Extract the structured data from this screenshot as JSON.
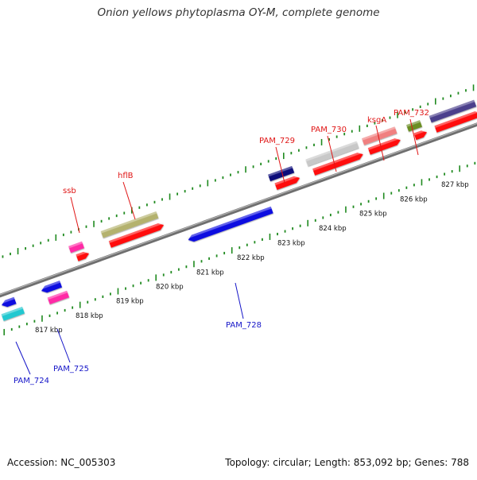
{
  "title": "Onion yellows phytoplasma OY-M, complete genome",
  "accession": "Accession: NC_005303",
  "topology": "Topology: circular; Length: 853,092 bp; Genes: 788",
  "colors": {
    "backbone": "#8a8a8a",
    "ticks": "#1f8a1f",
    "label_forward": "#e01515",
    "label_reverse": "#1515c8",
    "cds": "#ff1010"
  },
  "kbp_labels": [
    "817 kbp",
    "818 kbp",
    "819 kbp",
    "820 kbp",
    "821 kbp",
    "822 kbp",
    "823 kbp",
    "824 kbp",
    "825 kbp",
    "826 kbp",
    "827 kbp"
  ],
  "gene_labels": [
    {
      "text": "ssb",
      "strand": "forward"
    },
    {
      "text": "hflB",
      "strand": "forward"
    },
    {
      "text": "PAM_729",
      "strand": "forward"
    },
    {
      "text": "PAM_730",
      "strand": "forward"
    },
    {
      "text": "ksgA",
      "strand": "forward"
    },
    {
      "text": "PAM_732",
      "strand": "forward"
    },
    {
      "text": "PAM_728",
      "strand": "reverse"
    },
    {
      "text": "PAM_725",
      "strand": "reverse"
    },
    {
      "text": "PAM_724",
      "strand": "reverse"
    }
  ]
}
